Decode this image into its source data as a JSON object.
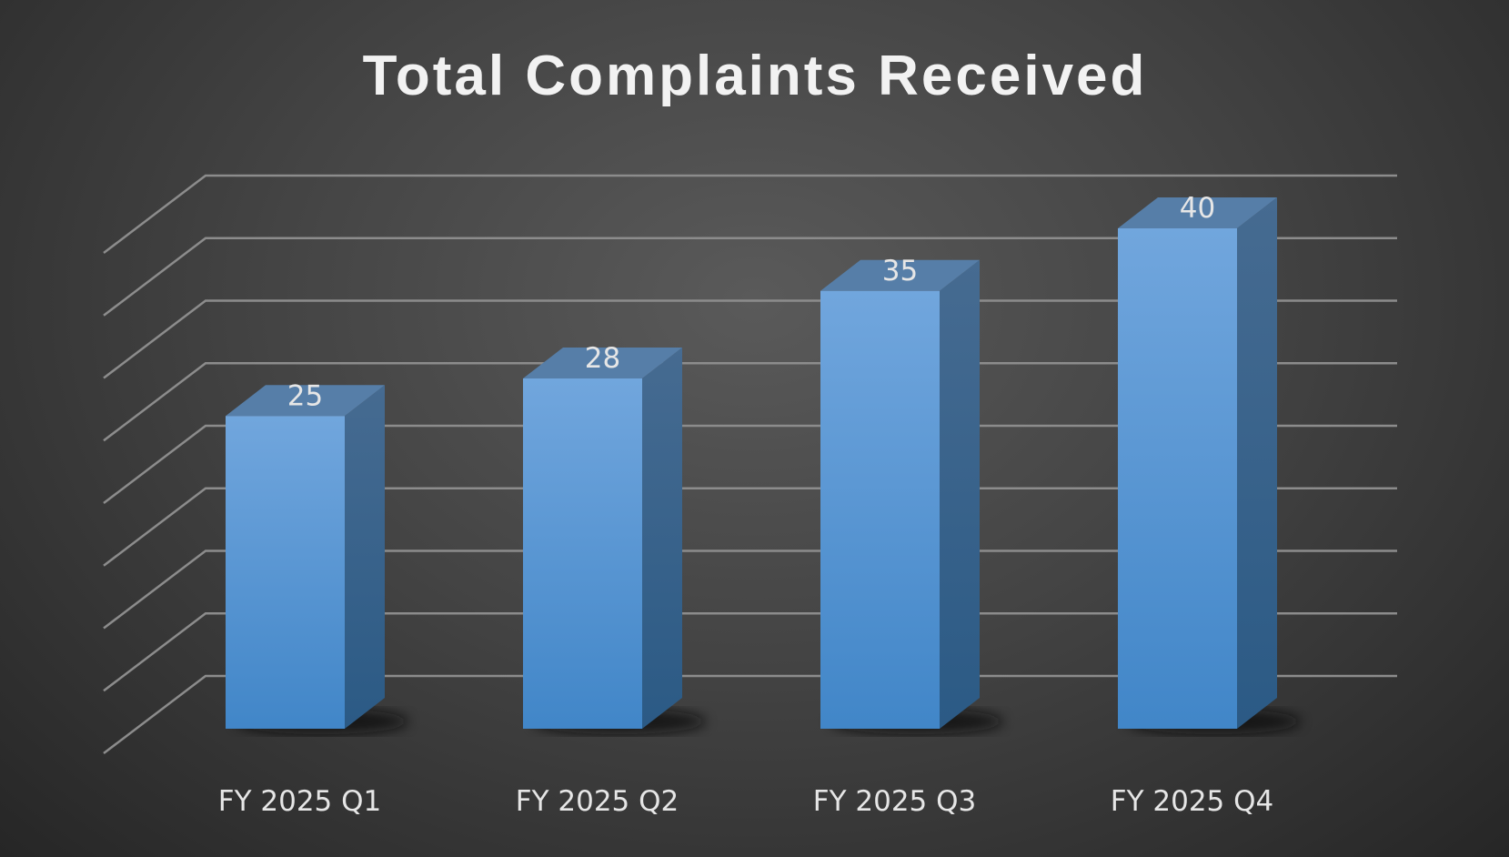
{
  "chart_data": {
    "type": "bar",
    "style": "3d-column",
    "title": "Total Complaints Received",
    "categories": [
      "FY 2025 Q1",
      "FY 2025 Q2",
      "FY 2025 Q3",
      "FY 2025 Q4"
    ],
    "values": [
      25,
      28,
      35,
      40
    ],
    "xlabel": "",
    "ylabel": "",
    "ylim": [
      0,
      40
    ],
    "ytick_step": 5,
    "grid": true,
    "legend": "none",
    "colors": {
      "bar": "#5b9bd5",
      "background": "#404040",
      "grid": "#8c8c8c",
      "text": "#e6e6e6"
    }
  }
}
